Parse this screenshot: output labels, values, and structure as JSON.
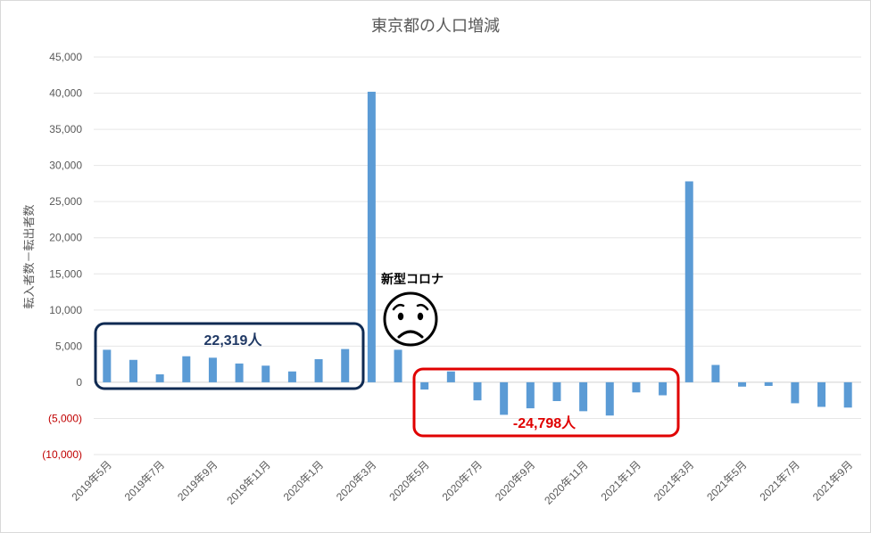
{
  "chart_data": {
    "type": "bar",
    "title": "東京都の人口増減",
    "ylabel": "転入者数－転出者数",
    "xlabel": "",
    "ylim": [
      -10000,
      45000
    ],
    "y_ticks": [
      {
        "value": 45000,
        "label": "45,000"
      },
      {
        "value": 40000,
        "label": "40,000"
      },
      {
        "value": 35000,
        "label": "35,000"
      },
      {
        "value": 30000,
        "label": "30,000"
      },
      {
        "value": 25000,
        "label": "25,000"
      },
      {
        "value": 20000,
        "label": "20,000"
      },
      {
        "value": 15000,
        "label": "15,000"
      },
      {
        "value": 10000,
        "label": "10,000"
      },
      {
        "value": 5000,
        "label": "5,000"
      },
      {
        "value": 0,
        "label": "0"
      },
      {
        "value": -5000,
        "label": "(5,000)"
      },
      {
        "value": -10000,
        "label": "(10,000)"
      }
    ],
    "categories": [
      "2019年5月",
      "2019年6月",
      "2019年7月",
      "2019年8月",
      "2019年9月",
      "2019年10月",
      "2019年11月",
      "2019年12月",
      "2020年1月",
      "2020年2月",
      "2020年3月",
      "2020年4月",
      "2020年5月",
      "2020年6月",
      "2020年7月",
      "2020年8月",
      "2020年9月",
      "2020年10月",
      "2020年11月",
      "2020年12月",
      "2021年1月",
      "2021年2月",
      "2021年3月",
      "2021年4月",
      "2021年5月",
      "2021年6月",
      "2021年7月",
      "2021年8月",
      "2021年9月"
    ],
    "x_tick_labels": [
      "2019年5月",
      "2019年7月",
      "2019年9月",
      "2019年11月",
      "2020年1月",
      "2020年3月",
      "2020年5月",
      "2020年7月",
      "2020年9月",
      "2020年11月",
      "2021年1月",
      "2021年3月",
      "2021年5月",
      "2021年7月",
      "2021年9月"
    ],
    "values": [
      4500,
      3100,
      1100,
      3600,
      3400,
      2600,
      2300,
      1500,
      3200,
      4600,
      40200,
      4500,
      -1000,
      1500,
      -2500,
      -4500,
      -3600,
      -2600,
      -4000,
      -4600,
      -1400,
      -1800,
      27800,
      2400,
      -600,
      -500,
      -2900,
      -3400,
      -3500
    ],
    "bar_color": "#5b9bd5",
    "grid": true,
    "legend": "none"
  },
  "annotations": {
    "pre_covid_total": "22,319人",
    "covid_label": "新型コロナ",
    "post_covid_total": "-24,798人",
    "pre_color": "#0f2a52",
    "post_color": "#e00000",
    "pre_text_color": "#1f3864",
    "post_text_color": "#e00000"
  }
}
